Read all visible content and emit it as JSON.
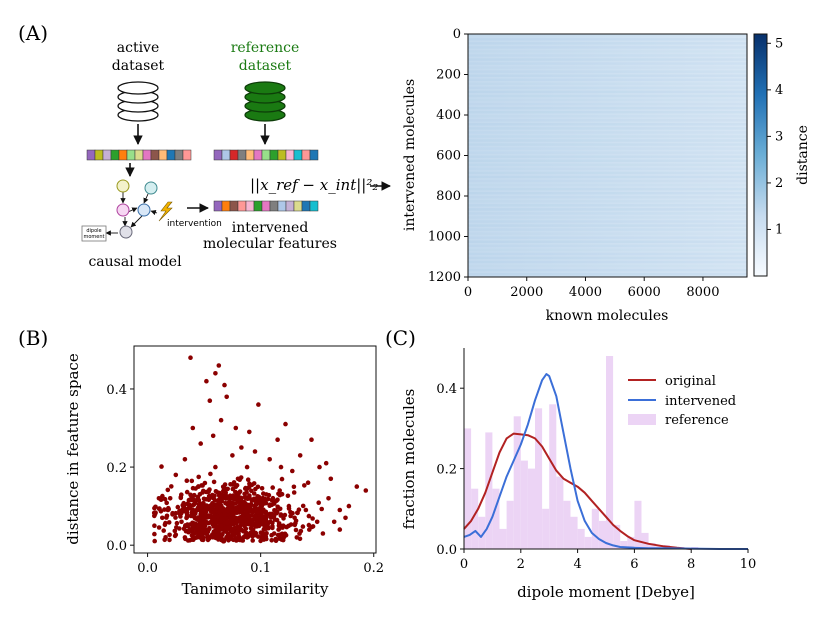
{
  "panel_labels": {
    "a": "(A)",
    "b": "(B)",
    "c": "(C)"
  },
  "schematic": {
    "active_line1": "active",
    "active_line2": "dataset",
    "reference_line1": "reference",
    "reference_line2": "dataset",
    "formula": "||x_ref − x_int||²₂",
    "intervened_line1": "intervened",
    "intervened_line2": "molecular features",
    "intervention": "intervention",
    "dipole_line1": "dipole",
    "dipole_line2": "moment",
    "causal_model": "causal model",
    "colors": {
      "reference_green": "#1a7a12",
      "arrow": "#111111"
    }
  },
  "chart_data": [
    {
      "type": "heatmap",
      "id": "A",
      "xlabel": "known molecules",
      "ylabel": "intervened molecules",
      "x_range": [
        0,
        9500
      ],
      "y_range": [
        0,
        1200
      ],
      "x_ticks": [
        "0",
        "2000",
        "4000",
        "6000",
        "8000"
      ],
      "y_ticks": [
        "0",
        "200",
        "400",
        "600",
        "800",
        "1000",
        "1200"
      ],
      "colorbar_label": "distance",
      "colorbar_range": [
        0,
        5.2
      ],
      "colorbar_ticks": [
        "1",
        "2",
        "3",
        "4",
        "5"
      ],
      "typical_value": 0.6,
      "colormap": [
        "#f7fbff",
        "#c6dbef",
        "#6baed6",
        "#2171b5",
        "#08306b"
      ]
    },
    {
      "type": "scatter",
      "id": "B",
      "xlabel": "Tanimoto similarity",
      "ylabel": "distance in feature space",
      "xlim": [
        -0.012,
        0.202
      ],
      "ylim": [
        -0.02,
        0.51
      ],
      "x_ticks": [
        "0.0",
        "0.1",
        "0.2"
      ],
      "y_ticks": [
        "0.0",
        "0.2",
        "0.4"
      ],
      "point_color": "#8b0000",
      "points": [
        [
          0.02,
          0.12
        ],
        [
          0.03,
          0.06
        ],
        [
          0.035,
          0.08
        ],
        [
          0.04,
          0.05
        ],
        [
          0.045,
          0.15
        ],
        [
          0.05,
          0.07
        ],
        [
          0.052,
          0.03
        ],
        [
          0.055,
          0.1
        ],
        [
          0.06,
          0.2
        ],
        [
          0.062,
          0.04
        ],
        [
          0.065,
          0.09
        ],
        [
          0.07,
          0.12
        ],
        [
          0.072,
          0.06
        ],
        [
          0.075,
          0.08
        ],
        [
          0.08,
          0.17
        ],
        [
          0.082,
          0.05
        ],
        [
          0.085,
          0.11
        ],
        [
          0.09,
          0.07
        ],
        [
          0.095,
          0.09
        ],
        [
          0.1,
          0.06
        ],
        [
          0.105,
          0.13
        ],
        [
          0.11,
          0.08
        ],
        [
          0.12,
          0.05
        ],
        [
          0.125,
          0.1
        ],
        [
          0.13,
          0.07
        ],
        [
          0.14,
          0.09
        ],
        [
          0.15,
          0.06
        ],
        [
          0.16,
          0.12
        ],
        [
          0.17,
          0.04
        ],
        [
          0.013,
          0.07
        ],
        [
          0.018,
          0.09
        ],
        [
          0.025,
          0.18
        ],
        [
          0.033,
          0.22
        ],
        [
          0.04,
          0.3
        ],
        [
          0.047,
          0.26
        ],
        [
          0.055,
          0.37
        ],
        [
          0.058,
          0.28
        ],
        [
          0.06,
          0.44
        ],
        [
          0.063,
          0.46
        ],
        [
          0.065,
          0.32
        ],
        [
          0.07,
          0.38
        ],
        [
          0.078,
          0.3
        ],
        [
          0.083,
          0.25
        ],
        [
          0.09,
          0.29
        ],
        [
          0.095,
          0.24
        ],
        [
          0.098,
          0.36
        ],
        [
          0.108,
          0.22
        ],
        [
          0.115,
          0.27
        ],
        [
          0.118,
          0.2
        ],
        [
          0.122,
          0.31
        ],
        [
          0.128,
          0.19
        ],
        [
          0.135,
          0.23
        ],
        [
          0.142,
          0.16
        ],
        [
          0.145,
          0.27
        ],
        [
          0.152,
          0.2
        ],
        [
          0.158,
          0.21
        ],
        [
          0.162,
          0.17
        ],
        [
          0.175,
          0.07
        ],
        [
          0.178,
          0.1
        ],
        [
          0.185,
          0.15
        ],
        [
          0.193,
          0.14
        ],
        [
          0.006,
          0.05
        ],
        [
          0.01,
          0.12
        ],
        [
          0.038,
          0.48
        ],
        [
          0.052,
          0.42
        ],
        [
          0.068,
          0.41
        ],
        [
          0.075,
          0.23
        ],
        [
          0.088,
          0.2
        ],
        [
          0.033,
          0.02
        ],
        [
          0.048,
          0.02
        ],
        [
          0.067,
          0.01
        ],
        [
          0.088,
          0.02
        ],
        [
          0.103,
          0.02
        ],
        [
          0.112,
          0.03
        ],
        [
          0.132,
          0.02
        ],
        [
          0.143,
          0.04
        ],
        [
          0.155,
          0.03
        ],
        [
          0.165,
          0.06
        ],
        [
          0.17,
          0.09
        ]
      ],
      "dense_cluster": {
        "x_mean": 0.07,
        "x_sd": 0.028,
        "y_mean": 0.075,
        "y_sd": 0.04,
        "count": 900
      }
    },
    {
      "type": "line",
      "id": "C",
      "xlabel": "dipole moment [Debye]",
      "ylabel": "fraction molecules",
      "xlim": [
        0,
        10
      ],
      "ylim": [
        0,
        0.5
      ],
      "x_ticks": [
        "0",
        "2",
        "4",
        "6",
        "8",
        "10"
      ],
      "y_ticks": [
        "0.0",
        "0.2",
        "0.4"
      ],
      "legend_position": "top-right",
      "series": [
        {
          "name": "original",
          "color": "#b22222",
          "x": [
            0.0,
            0.25,
            0.5,
            0.75,
            1.0,
            1.25,
            1.5,
            1.75,
            2.0,
            2.25,
            2.5,
            2.75,
            3.0,
            3.25,
            3.5,
            3.75,
            4.0,
            4.25,
            4.5,
            4.75,
            5.0,
            5.25,
            5.5,
            5.75,
            6.0,
            6.5,
            7.0,
            7.5,
            8.0
          ],
          "y": [
            0.05,
            0.07,
            0.1,
            0.14,
            0.19,
            0.24,
            0.275,
            0.287,
            0.285,
            0.283,
            0.275,
            0.255,
            0.225,
            0.195,
            0.175,
            0.165,
            0.155,
            0.14,
            0.12,
            0.1,
            0.08,
            0.06,
            0.045,
            0.032,
            0.022,
            0.013,
            0.007,
            0.003,
            0.0
          ]
        },
        {
          "name": "intervened",
          "color": "#3b6fd8",
          "x": [
            0.0,
            0.2,
            0.4,
            0.6,
            0.8,
            1.0,
            1.25,
            1.5,
            1.75,
            2.0,
            2.25,
            2.5,
            2.75,
            2.9,
            3.0,
            3.25,
            3.5,
            3.75,
            4.0,
            4.25,
            4.5,
            4.75,
            5.0,
            5.25,
            5.5,
            6.0,
            6.5,
            7.0,
            8.0,
            9.0,
            10.0
          ],
          "y": [
            0.03,
            0.035,
            0.045,
            0.03,
            0.05,
            0.08,
            0.13,
            0.18,
            0.22,
            0.26,
            0.31,
            0.37,
            0.42,
            0.435,
            0.43,
            0.38,
            0.29,
            0.2,
            0.12,
            0.07,
            0.04,
            0.025,
            0.015,
            0.009,
            0.005,
            0.003,
            0.002,
            0.002,
            0.001,
            0.0,
            0.0
          ]
        },
        {
          "name": "reference",
          "type": "hist",
          "color": "#ecd4f5",
          "bins": [
            [
              0.0,
              0.3
            ],
            [
              0.25,
              0.15
            ],
            [
              0.5,
              0.08
            ],
            [
              0.75,
              0.29
            ],
            [
              1.0,
              0.15
            ],
            [
              1.25,
              0.05
            ],
            [
              1.5,
              0.12
            ],
            [
              1.75,
              0.33
            ],
            [
              2.0,
              0.22
            ],
            [
              2.25,
              0.2
            ],
            [
              2.5,
              0.35
            ],
            [
              2.75,
              0.1
            ],
            [
              3.0,
              0.36
            ],
            [
              3.25,
              0.18
            ],
            [
              3.5,
              0.12
            ],
            [
              3.75,
              0.08
            ],
            [
              4.0,
              0.05
            ],
            [
              4.25,
              0.03
            ],
            [
              4.5,
              0.1
            ],
            [
              4.75,
              0.07
            ],
            [
              5.0,
              0.48
            ],
            [
              5.25,
              0.06
            ],
            [
              5.5,
              0.02
            ],
            [
              5.75,
              0.03
            ],
            [
              6.0,
              0.12
            ],
            [
              6.25,
              0.04
            ],
            [
              6.5,
              0.015
            ],
            [
              6.75,
              0.01
            ],
            [
              7.0,
              0.01
            ],
            [
              7.5,
              0.005
            ],
            [
              8.0,
              0.005
            ],
            [
              8.5,
              0.0
            ]
          ],
          "bin_width": 0.25
        }
      ]
    }
  ]
}
